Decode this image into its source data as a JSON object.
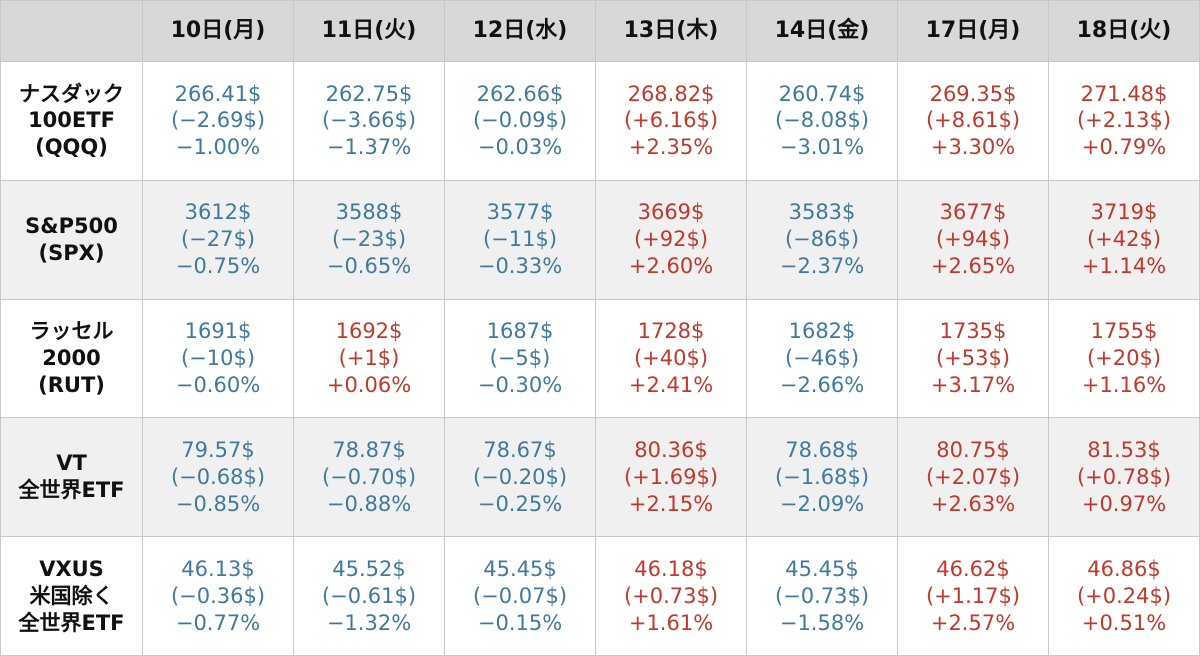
{
  "headers": [
    "",
    "10日(月)",
    "11日(火)",
    "12日(水)",
    "13日(木)",
    "14日(金)",
    "17日(月)",
    "18日(火)"
  ],
  "rows": [
    {
      "label": [
        "ナスダック",
        "100ETF",
        "(QQQ)"
      ],
      "cells": [
        {
          "price": "266.41$",
          "change": "(−2.69$)",
          "pct": "−1.00%",
          "dir": "down"
        },
        {
          "price": "262.75$",
          "change": "(−3.66$)",
          "pct": "−1.37%",
          "dir": "down"
        },
        {
          "price": "262.66$",
          "change": "(−0.09$)",
          "pct": "−0.03%",
          "dir": "down"
        },
        {
          "price": "268.82$",
          "change": "(+6.16$)",
          "pct": "+2.35%",
          "dir": "up"
        },
        {
          "price": "260.74$",
          "change": "(−8.08$)",
          "pct": "−3.01%",
          "dir": "down"
        },
        {
          "price": "269.35$",
          "change": "(+8.61$)",
          "pct": "+3.30%",
          "dir": "up"
        },
        {
          "price": "271.48$",
          "change": "(+2.13$)",
          "pct": "+0.79%",
          "dir": "up"
        }
      ]
    },
    {
      "label": [
        "S&P500",
        "(SPX)"
      ],
      "cells": [
        {
          "price": "3612$",
          "change": "(−27$)",
          "pct": "−0.75%",
          "dir": "down"
        },
        {
          "price": "3588$",
          "change": "(−23$)",
          "pct": "−0.65%",
          "dir": "down"
        },
        {
          "price": "3577$",
          "change": "(−11$)",
          "pct": "−0.33%",
          "dir": "down"
        },
        {
          "price": "3669$",
          "change": "(+92$)",
          "pct": "+2.60%",
          "dir": "up"
        },
        {
          "price": "3583$",
          "change": "(−86$)",
          "pct": "−2.37%",
          "dir": "down"
        },
        {
          "price": "3677$",
          "change": "(+94$)",
          "pct": "+2.65%",
          "dir": "up"
        },
        {
          "price": "3719$",
          "change": "(+42$)",
          "pct": "+1.14%",
          "dir": "up"
        }
      ]
    },
    {
      "label": [
        "ラッセル",
        "2000",
        "(RUT)"
      ],
      "cells": [
        {
          "price": "1691$",
          "change": "(−10$)",
          "pct": "−0.60%",
          "dir": "down"
        },
        {
          "price": "1692$",
          "change": "(+1$)",
          "pct": "+0.06%",
          "dir": "up"
        },
        {
          "price": "1687$",
          "change": "(−5$)",
          "pct": "−0.30%",
          "dir": "down"
        },
        {
          "price": "1728$",
          "change": "(+40$)",
          "pct": "+2.41%",
          "dir": "up"
        },
        {
          "price": "1682$",
          "change": "(−46$)",
          "pct": "−2.66%",
          "dir": "down"
        },
        {
          "price": "1735$",
          "change": "(+53$)",
          "pct": "+3.17%",
          "dir": "up"
        },
        {
          "price": "1755$",
          "change": "(+20$)",
          "pct": "+1.16%",
          "dir": "up"
        }
      ]
    },
    {
      "label": [
        "VT",
        "全世界ETF"
      ],
      "cells": [
        {
          "price": "79.57$",
          "change": "(−0.68$)",
          "pct": "−0.85%",
          "dir": "down"
        },
        {
          "price": "78.87$",
          "change": "(−0.70$)",
          "pct": "−0.88%",
          "dir": "down"
        },
        {
          "price": "78.67$",
          "change": "(−0.20$)",
          "pct": "−0.25%",
          "dir": "down"
        },
        {
          "price": "80.36$",
          "change": "(+1.69$)",
          "pct": "+2.15%",
          "dir": "up"
        },
        {
          "price": "78.68$",
          "change": "(−1.68$)",
          "pct": "−2.09%",
          "dir": "down"
        },
        {
          "price": "80.75$",
          "change": "(+2.07$)",
          "pct": "+2.63%",
          "dir": "up"
        },
        {
          "price": "81.53$",
          "change": "(+0.78$)",
          "pct": "+0.97%",
          "dir": "up"
        }
      ]
    },
    {
      "label": [
        "VXUS",
        "米国除く",
        "全世界ETF"
      ],
      "cells": [
        {
          "price": "46.13$",
          "change": "(−0.36$)",
          "pct": "−0.77%",
          "dir": "down"
        },
        {
          "price": "45.52$",
          "change": "(−0.61$)",
          "pct": "−1.32%",
          "dir": "down"
        },
        {
          "price": "45.45$",
          "change": "(−0.07$)",
          "pct": "−0.15%",
          "dir": "down"
        },
        {
          "price": "46.18$",
          "change": "(+0.73$)",
          "pct": "+1.61%",
          "dir": "up"
        },
        {
          "price": "45.45$",
          "change": "(−0.73$)",
          "pct": "−1.58%",
          "dir": "down"
        },
        {
          "price": "46.62$",
          "change": "(+1.17$)",
          "pct": "+2.57%",
          "dir": "up"
        },
        {
          "price": "46.86$",
          "change": "(+0.24$)",
          "pct": "+0.51%",
          "dir": "up"
        }
      ]
    }
  ],
  "colors": {
    "up": "#c0392b",
    "down": "#3f7a9e",
    "header_bg": "#d8d8d8",
    "alt_row_bg": "#f0f0f0"
  }
}
